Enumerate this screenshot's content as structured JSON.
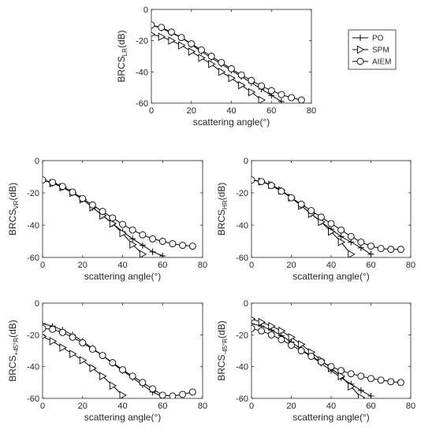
{
  "chart_data": [
    {
      "type": "line",
      "xlabel": "scattering angle(°)",
      "ylabel_main": "BRCS",
      "ylabel_sub": "LR",
      "ylabel_unit": "(dB)",
      "xlim": [
        0,
        80
      ],
      "ylim": [
        -60,
        0
      ],
      "xticks": [
        "0",
        "20",
        "40",
        "60",
        "80"
      ],
      "yticks": [
        "0",
        "-20",
        "-40",
        "-60"
      ],
      "grid": false,
      "series": [
        {
          "name": "PO",
          "marker": "plus",
          "x": [
            0,
            5,
            10,
            15,
            20,
            25,
            30,
            35,
            40,
            45,
            50,
            55,
            60,
            65
          ],
          "y": [
            -10,
            -12,
            -15,
            -18,
            -22.5,
            -27,
            -31,
            -35,
            -39,
            -43,
            -47,
            -51,
            -55,
            -59
          ]
        },
        {
          "name": "SPM",
          "marker": "triangle-right",
          "x": [
            0,
            5,
            10,
            15,
            20,
            25,
            30,
            35,
            40,
            45,
            50,
            55
          ],
          "y": [
            -16,
            -17.5,
            -20,
            -23,
            -27,
            -31,
            -35,
            -40,
            -44,
            -48.5,
            -53,
            -58
          ]
        },
        {
          "name": "AIEM",
          "marker": "circle",
          "x": [
            0,
            5,
            10,
            15,
            20,
            25,
            30,
            35,
            40,
            45,
            50,
            55,
            60,
            65,
            70,
            75
          ],
          "y": [
            -10,
            -11.5,
            -14.5,
            -18,
            -22,
            -26,
            -30,
            -34,
            -38,
            -42,
            -45.5,
            -49,
            -52,
            -54.5,
            -56.5,
            -58
          ]
        }
      ]
    },
    {
      "type": "line",
      "xlabel": "scattering angle(°)",
      "ylabel_main": "BRCS",
      "ylabel_sub": "VR",
      "ylabel_unit": "(dB)",
      "xlim": [
        0,
        80
      ],
      "ylim": [
        -60,
        0
      ],
      "xticks": [
        "0",
        "20",
        "40",
        "60",
        "80"
      ],
      "yticks": [
        "0",
        "-20",
        "-40",
        "-60"
      ],
      "grid": false,
      "series": [
        {
          "name": "PO",
          "marker": "plus",
          "x": [
            0,
            5,
            10,
            15,
            20,
            25,
            30,
            35,
            40,
            45,
            50,
            55,
            60
          ],
          "y": [
            -12,
            -14,
            -16.5,
            -20,
            -24,
            -29,
            -34,
            -39,
            -44,
            -48.5,
            -52.5,
            -56.5,
            -59
          ]
        },
        {
          "name": "SPM",
          "marker": "triangle-right",
          "x": [
            0,
            5,
            10,
            15,
            20,
            25,
            30,
            35,
            40,
            45,
            50
          ],
          "y": [
            -12,
            -14,
            -16.5,
            -20,
            -24,
            -29,
            -34,
            -39,
            -45,
            -52,
            -58
          ]
        },
        {
          "name": "AIEM",
          "marker": "circle",
          "x": [
            0,
            5,
            10,
            15,
            20,
            25,
            30,
            35,
            40,
            45,
            50,
            55,
            60,
            65,
            70,
            75
          ],
          "y": [
            -12,
            -13.5,
            -16,
            -19.5,
            -23.5,
            -27.5,
            -31.5,
            -35.5,
            -39.5,
            -43,
            -46,
            -48.5,
            -50,
            -51.5,
            -52.5,
            -53
          ]
        }
      ]
    },
    {
      "type": "line",
      "xlabel": "scattering angle(°)",
      "ylabel_main": "BRCS",
      "ylabel_sub": "HR",
      "ylabel_unit": "(dB)",
      "xlim": [
        0,
        80
      ],
      "ylim": [
        -60,
        0
      ],
      "xticks": [
        "0",
        "20",
        "40",
        "60",
        "80"
      ],
      "yticks": [
        "0",
        "-20",
        "-40",
        "-60"
      ],
      "grid": false,
      "series": [
        {
          "name": "PO",
          "marker": "plus",
          "x": [
            0,
            5,
            10,
            15,
            20,
            25,
            30,
            35,
            40,
            45,
            50,
            55,
            60
          ],
          "y": [
            -12,
            -13,
            -15,
            -18.5,
            -23,
            -28,
            -33,
            -38,
            -42.5,
            -47,
            -50.5,
            -54,
            -58
          ]
        },
        {
          "name": "SPM",
          "marker": "triangle-right",
          "x": [
            0,
            5,
            10,
            15,
            20,
            25,
            30,
            35,
            40,
            45,
            50
          ],
          "y": [
            -12,
            -13,
            -15,
            -18.5,
            -23,
            -28,
            -33,
            -38,
            -44,
            -50.5,
            -58
          ]
        },
        {
          "name": "AIEM",
          "marker": "circle",
          "x": [
            0,
            5,
            10,
            15,
            20,
            25,
            30,
            35,
            40,
            45,
            50,
            55,
            60,
            65,
            70,
            75
          ],
          "y": [
            -12,
            -13,
            -15.5,
            -19,
            -23,
            -27,
            -31,
            -35,
            -39,
            -43,
            -47,
            -50.5,
            -53,
            -54.5,
            -55,
            -55
          ]
        }
      ]
    },
    {
      "type": "line",
      "xlabel": "scattering angle(°)",
      "ylabel_main": "BRCS",
      "ylabel_sub": "+45°R",
      "ylabel_unit": "(dB)",
      "xlim": [
        0,
        80
      ],
      "ylim": [
        -60,
        0
      ],
      "xticks": [
        "0",
        "20",
        "40",
        "60",
        "80"
      ],
      "yticks": [
        "0",
        "-20",
        "-40",
        "-60"
      ],
      "grid": false,
      "series": [
        {
          "name": "PO",
          "marker": "plus",
          "x": [
            0,
            5,
            10,
            15,
            20,
            25,
            30,
            35,
            40,
            45,
            50,
            55,
            60
          ],
          "y": [
            -13,
            -14.5,
            -17,
            -20,
            -24,
            -28.5,
            -33,
            -38,
            -42.5,
            -47,
            -51.5,
            -56,
            -59
          ]
        },
        {
          "name": "SPM",
          "marker": "triangle-right",
          "x": [
            0,
            5,
            10,
            15,
            20,
            25,
            30,
            35,
            40
          ],
          "y": [
            -21,
            -24,
            -28,
            -32,
            -36,
            -41,
            -46,
            -52,
            -58
          ]
        },
        {
          "name": "AIEM",
          "marker": "circle",
          "x": [
            0,
            5,
            10,
            15,
            20,
            25,
            30,
            35,
            40,
            45,
            50,
            55,
            60,
            65,
            70,
            75
          ],
          "y": [
            -16,
            -16.5,
            -18.5,
            -21.5,
            -25,
            -29,
            -33,
            -37.5,
            -42,
            -46,
            -50,
            -54,
            -58,
            -58.5,
            -57.5,
            -56
          ]
        }
      ]
    },
    {
      "type": "line",
      "xlabel": "scattering angle(°)",
      "ylabel_main": "BRCS",
      "ylabel_sub": "-45°R",
      "ylabel_unit": "(dB)",
      "xlim": [
        0,
        80
      ],
      "ylim": [
        -60,
        0
      ],
      "xticks": [
        "0",
        "20",
        "40",
        "60",
        "80"
      ],
      "yticks": [
        "0",
        "-20",
        "-40",
        "-60"
      ],
      "grid": false,
      "series": [
        {
          "name": "PO",
          "marker": "plus",
          "x": [
            0,
            5,
            10,
            15,
            20,
            25,
            30,
            35,
            40,
            45,
            50,
            55,
            60
          ],
          "y": [
            -13,
            -14.5,
            -17,
            -20.5,
            -24.5,
            -29,
            -33.5,
            -38,
            -42.5,
            -47,
            -51,
            -55,
            -58.5
          ]
        },
        {
          "name": "SPM",
          "marker": "triangle-right",
          "x": [
            0,
            5,
            10,
            15,
            20,
            25,
            30,
            35,
            40,
            45,
            50,
            55
          ],
          "y": [
            -10,
            -12,
            -14.5,
            -17.5,
            -21.5,
            -26,
            -31,
            -36,
            -41,
            -46,
            -52.5,
            -59.5
          ]
        },
        {
          "name": "AIEM",
          "marker": "circle",
          "x": [
            0,
            5,
            10,
            15,
            20,
            25,
            30,
            35,
            40,
            45,
            50,
            55,
            60,
            65,
            70,
            75
          ],
          "y": [
            -16,
            -17.5,
            -20,
            -23,
            -26.5,
            -30,
            -33.5,
            -37,
            -40,
            -42.5,
            -44.5,
            -46,
            -47.5,
            -48.5,
            -49.5,
            -50
          ]
        }
      ]
    }
  ],
  "legend": {
    "placement": "right of top chart",
    "entries": [
      {
        "name": "PO",
        "marker": "plus"
      },
      {
        "name": "SPM",
        "marker": "triangle-right"
      },
      {
        "name": "AIEM",
        "marker": "circle"
      }
    ]
  },
  "colors": {
    "line": "#000000",
    "text": "#262626",
    "axes": "#262626",
    "background": "#ffffff"
  }
}
